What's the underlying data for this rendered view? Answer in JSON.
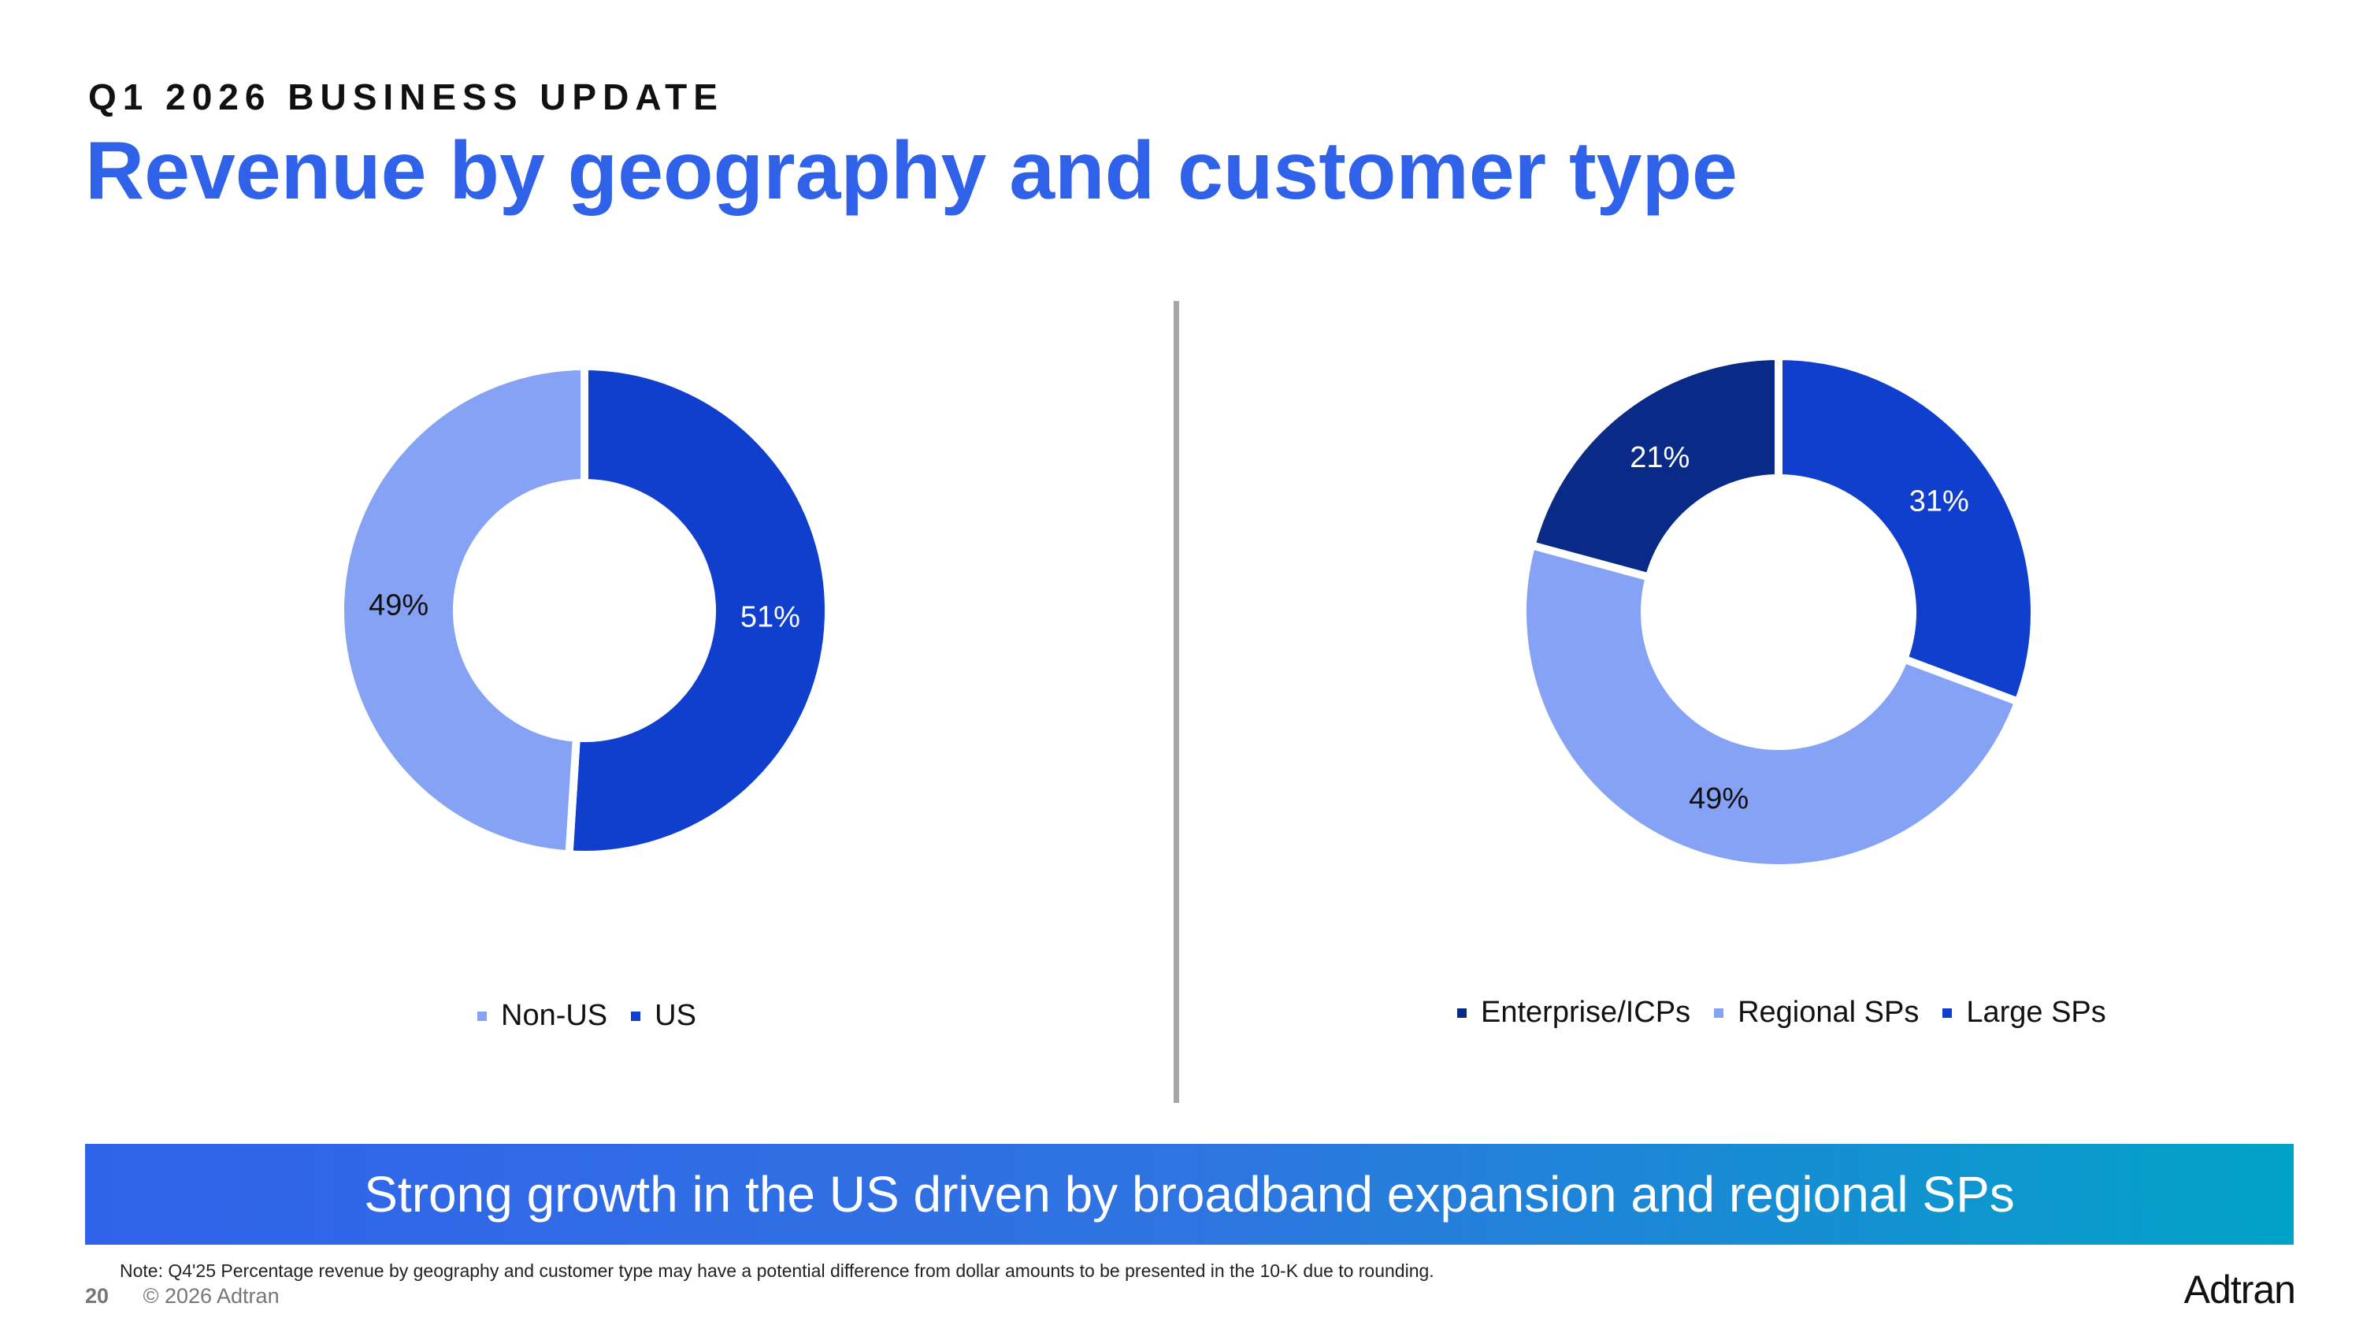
{
  "header": {
    "eyebrow": "Q1 2026 BUSINESS UPDATE",
    "title": "Revenue by geography and customer type"
  },
  "chart_data": [
    {
      "type": "pie",
      "donut": true,
      "title": "",
      "slices": [
        {
          "label": "US",
          "value": 51,
          "display": "51%",
          "color": "#0f3fcc"
        },
        {
          "label": "Non-US",
          "value": 49,
          "display": "49%",
          "color": "#86a2f5"
        }
      ],
      "legend": [
        "Non-US",
        "US"
      ],
      "legend_placement": "bottom"
    },
    {
      "type": "pie",
      "donut": true,
      "title": "",
      "slices": [
        {
          "label": "Large SPs",
          "value": 31,
          "display": "31%",
          "color": "#0f3fcc"
        },
        {
          "label": "Regional SPs",
          "value": 49,
          "display": "49%",
          "color": "#86a2f5"
        },
        {
          "label": "Enterprise/ICPs",
          "value": 21,
          "display": "21%",
          "color": "#0a2a87"
        }
      ],
      "legend": [
        "Enterprise/ICPs",
        "Regional SPs",
        "Large SPs"
      ],
      "legend_placement": "bottom"
    }
  ],
  "banner": {
    "text": "Strong growth in the US driven by broadband expansion and regional SPs"
  },
  "footer": {
    "note": "Note: Q4'25 Percentage revenue by geography and customer type may have a potential difference from dollar amounts to be presented in the 10-K due to rounding.",
    "page_number": "20",
    "copyright": "© 2026 Adtran",
    "logo_text": "Adtran"
  }
}
